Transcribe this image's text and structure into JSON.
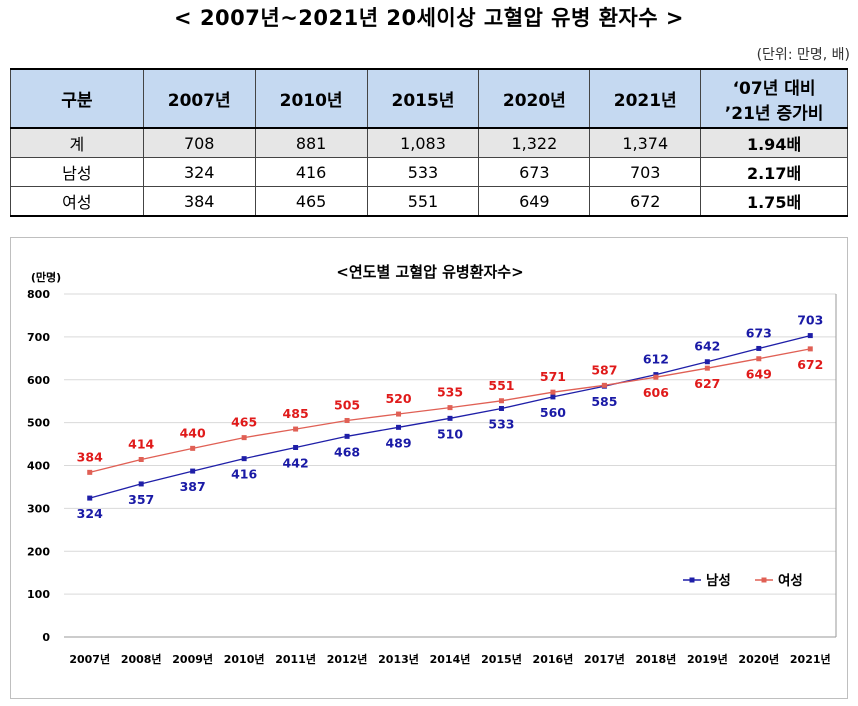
{
  "header": {
    "title": "< 2007년~2021년 20세이상 고혈압 유병 환자수 >",
    "unit": "(단위: 만명, 배)"
  },
  "table": {
    "columns": [
      "구분",
      "2007년",
      "2010년",
      "2015년",
      "2020년",
      "2021년"
    ],
    "ratio_header_line1": "‘07년 대비",
    "ratio_header_line2": "’21년 증가비",
    "rows": [
      {
        "label": "계",
        "values": [
          "708",
          "881",
          "1,083",
          "1,322",
          "1,374"
        ],
        "ratio": "1.94배"
      },
      {
        "label": "남성",
        "values": [
          "324",
          "416",
          "533",
          "673",
          "703"
        ],
        "ratio": "2.17배"
      },
      {
        "label": "여성",
        "values": [
          "384",
          "465",
          "551",
          "649",
          "672"
        ],
        "ratio": "1.75배"
      }
    ]
  },
  "chart_data": {
    "type": "line",
    "title": "<연도별 고혈압 유병환자수>",
    "ylabel": "(만명)",
    "xlabel": "",
    "ylim": [
      0,
      800
    ],
    "yticks": [
      0,
      100,
      200,
      300,
      400,
      500,
      600,
      700,
      800
    ],
    "grid": true,
    "legend_position": "bottom-right",
    "categories": [
      "2007년",
      "2008년",
      "2009년",
      "2010년",
      "2011년",
      "2012년",
      "2013년",
      "2014년",
      "2015년",
      "2016년",
      "2017년",
      "2018년",
      "2019년",
      "2020년",
      "2021년"
    ],
    "series": [
      {
        "name": "남성",
        "color": "#1f1fa8",
        "label_color": "#1a1aa6",
        "values": [
          324,
          357,
          387,
          416,
          442,
          468,
          489,
          510,
          533,
          560,
          585,
          612,
          642,
          673,
          703
        ]
      },
      {
        "name": "여성",
        "color": "#e06055",
        "label_color": "#e01a1a",
        "values": [
          384,
          414,
          440,
          465,
          485,
          505,
          520,
          535,
          551,
          571,
          587,
          606,
          627,
          649,
          672
        ]
      }
    ]
  }
}
